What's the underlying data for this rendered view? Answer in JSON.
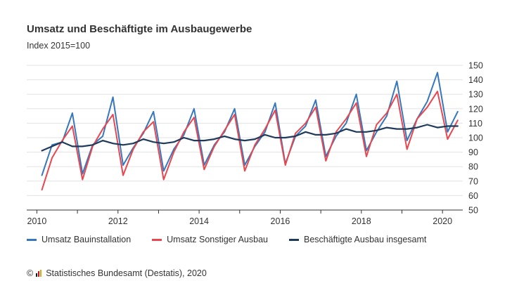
{
  "chart_data": {
    "type": "line",
    "title": "Umsatz und Beschäftigte im Ausbaugewerbe",
    "subtitle": "Index 2015=100",
    "x_ticks": [
      "2010",
      "2012",
      "2014",
      "2016",
      "2018",
      "2020"
    ],
    "y_ticks": [
      50,
      60,
      70,
      80,
      90,
      100,
      110,
      120,
      130,
      140,
      150
    ],
    "ylim": [
      50,
      150
    ],
    "xlim": [
      2009.75,
      2020.5
    ],
    "grid": "horizontal",
    "legend_position": "bottom",
    "x": [
      2010.125,
      2010.375,
      2010.625,
      2010.875,
      2011.125,
      2011.375,
      2011.625,
      2011.875,
      2012.125,
      2012.375,
      2012.625,
      2012.875,
      2013.125,
      2013.375,
      2013.625,
      2013.875,
      2014.125,
      2014.375,
      2014.625,
      2014.875,
      2015.125,
      2015.375,
      2015.625,
      2015.875,
      2016.125,
      2016.375,
      2016.625,
      2016.875,
      2017.125,
      2017.375,
      2017.625,
      2017.875,
      2018.125,
      2018.375,
      2018.625,
      2018.875,
      2019.125,
      2019.375,
      2019.625,
      2019.875,
      2020.125,
      2020.375
    ],
    "series": [
      {
        "name": "Umsatz Bauinstallation",
        "color": "#3777bd",
        "values": [
          74,
          95,
          97,
          117,
          75,
          95,
          101,
          128,
          81,
          93,
          103,
          118,
          77,
          92,
          102,
          120,
          81,
          95,
          104,
          120,
          81,
          94,
          104,
          124,
          82,
          101,
          108,
          126,
          87,
          101,
          110,
          130,
          91,
          104,
          115,
          139,
          98,
          113,
          125,
          145,
          104,
          118
        ]
      },
      {
        "name": "Umsatz Sonstiger Ausbau",
        "color": "#e8474f",
        "values": [
          64,
          86,
          98,
          108,
          71,
          94,
          106,
          116,
          74,
          92,
          104,
          111,
          71,
          90,
          104,
          114,
          78,
          94,
          105,
          116,
          77,
          95,
          106,
          119,
          81,
          103,
          110,
          121,
          84,
          104,
          113,
          124,
          87,
          109,
          117,
          130,
          92,
          113,
          121,
          132,
          99,
          112
        ]
      },
      {
        "name": "Beschäftigte Ausbau insgesamt",
        "color": "#1f3a5a",
        "values": [
          91,
          94,
          97,
          94,
          94,
          95,
          98,
          96,
          95,
          96,
          99,
          97,
          96,
          97,
          100,
          98,
          98,
          99,
          101,
          99,
          98,
          99,
          102,
          100,
          100,
          101,
          104,
          102,
          102,
          103,
          106,
          104,
          104,
          105,
          107,
          106,
          106,
          107,
          109,
          107,
          108,
          108
        ]
      }
    ]
  },
  "footer": {
    "copyright_symbol": "©",
    "source": "Statistisches Bundesamt (Destatis), 2020"
  }
}
